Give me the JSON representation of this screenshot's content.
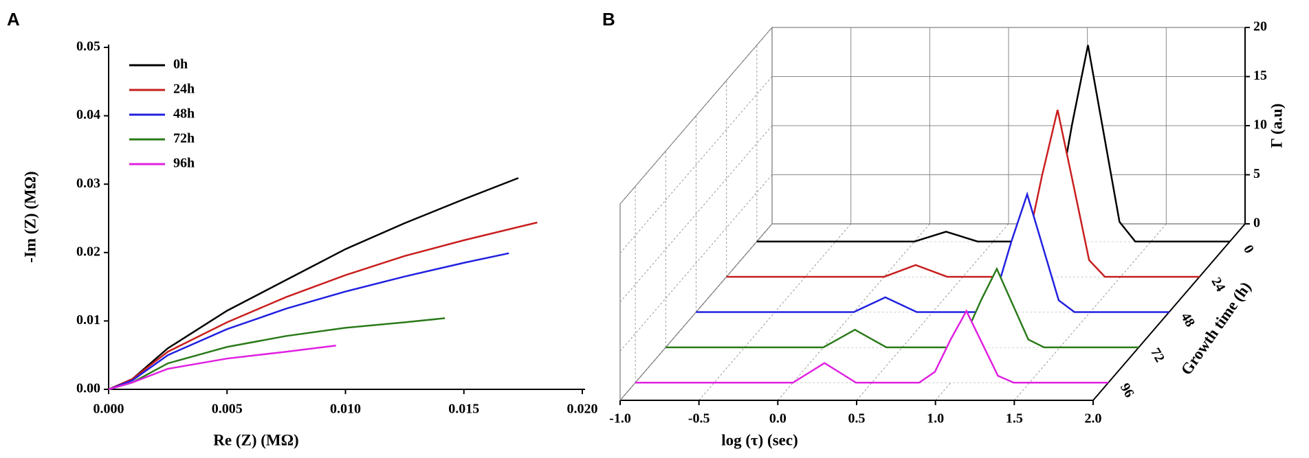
{
  "chart_data": [
    {
      "type": "line",
      "panel_label": "A",
      "xlabel": "Re (Z) (MΩ)",
      "ylabel": "-Im (Z) (MΩ)",
      "xlim": [
        0,
        0.02
      ],
      "ylim": [
        0,
        0.05
      ],
      "xticks": [
        {
          "value": 0,
          "label": "0.000"
        },
        {
          "value": 0.005,
          "label": "0.005"
        },
        {
          "value": 0.01,
          "label": "0.010"
        },
        {
          "value": 0.015,
          "label": "0.015"
        },
        {
          "value": 0.02,
          "label": "0.020"
        }
      ],
      "yticks": [
        {
          "value": 0,
          "label": "0.00"
        },
        {
          "value": 0.01,
          "label": "0.01"
        },
        {
          "value": 0.02,
          "label": "0.02"
        },
        {
          "value": 0.03,
          "label": "0.03"
        },
        {
          "value": 0.04,
          "label": "0.04"
        },
        {
          "value": 0.05,
          "label": "0.05"
        }
      ],
      "legend": "upper left",
      "series": [
        {
          "name": "0h",
          "color": "#000000",
          "x": [
            0,
            0.001,
            0.0025,
            0.005,
            0.0075,
            0.01,
            0.0125,
            0.015,
            0.0173
          ],
          "values": [
            0,
            0.0015,
            0.006,
            0.0115,
            0.016,
            0.0205,
            0.0243,
            0.0278,
            0.0309
          ]
        },
        {
          "name": "24h",
          "color": "#c81e1e",
          "x": [
            0,
            0.001,
            0.0025,
            0.005,
            0.0075,
            0.01,
            0.0125,
            0.015,
            0.0181
          ],
          "values": [
            0,
            0.0015,
            0.0055,
            0.0098,
            0.0135,
            0.0167,
            0.0195,
            0.0218,
            0.0244
          ]
        },
        {
          "name": "48h",
          "color": "#2020e0",
          "x": [
            0,
            0.001,
            0.0025,
            0.005,
            0.0075,
            0.01,
            0.0125,
            0.015,
            0.0169
          ],
          "values": [
            0,
            0.0013,
            0.005,
            0.0088,
            0.0118,
            0.0143,
            0.0165,
            0.0185,
            0.0199
          ]
        },
        {
          "name": "72h",
          "color": "#2a7a1a",
          "x": [
            0,
            0.001,
            0.0025,
            0.005,
            0.0075,
            0.01,
            0.0125,
            0.0142
          ],
          "values": [
            0,
            0.001,
            0.0038,
            0.0062,
            0.0078,
            0.009,
            0.0098,
            0.0104
          ]
        },
        {
          "name": "96h",
          "color": "#e020e0",
          "x": [
            0,
            0.001,
            0.0025,
            0.005,
            0.0075,
            0.0096
          ],
          "values": [
            0,
            0.001,
            0.003,
            0.0045,
            0.0055,
            0.0064
          ]
        }
      ]
    },
    {
      "type": "waterfall3d",
      "panel_label": "B",
      "xlabel": "log (τ) (sec)",
      "ylabel": "Growth time (h)",
      "zlabel": "Γ (a.u)",
      "xlim": [
        -1,
        2
      ],
      "zlim": [
        0,
        20
      ],
      "xticks": [
        {
          "value": -1,
          "label": "-1.0"
        },
        -0.5,
        {
          "value": 0,
          "label": "0.0"
        },
        0.5,
        {
          "value": 1,
          "label": "1.0"
        },
        1.5,
        {
          "value": 2,
          "label": "2.0"
        }
      ],
      "zticks": [
        0,
        5,
        10,
        15,
        20
      ],
      "categories": [
        "0",
        "24",
        "48",
        "72",
        "96"
      ],
      "x": [
        -1.0,
        -0.9,
        -0.8,
        -0.7,
        -0.6,
        -0.5,
        -0.4,
        -0.3,
        -0.2,
        -0.1,
        0.0,
        0.1,
        0.2,
        0.3,
        0.4,
        0.5,
        0.6,
        0.7,
        0.8,
        0.9,
        1.0,
        1.1,
        1.2,
        1.3,
        1.4,
        1.5,
        1.6,
        1.7,
        1.8,
        1.9,
        2.0
      ],
      "grid": true,
      "series": [
        {
          "color": "#000000",
          "values": [
            0,
            0,
            0,
            0,
            0,
            0,
            0,
            0,
            0,
            0,
            0,
            0.5,
            1,
            0.5,
            0,
            0,
            0,
            0,
            0,
            3,
            12,
            20,
            11,
            2,
            0,
            0,
            0,
            0,
            0,
            0,
            0
          ]
        },
        {
          "color": "#c81e1e",
          "values": [
            0,
            0,
            0,
            0,
            0,
            0,
            0,
            0,
            0,
            0,
            0,
            0.6,
            1.2,
            0.6,
            0,
            0,
            0,
            0,
            0,
            2.6,
            10.2,
            17,
            9.4,
            1.7,
            0,
            0,
            0,
            0,
            0,
            0,
            0
          ]
        },
        {
          "color": "#2020e0",
          "values": [
            0,
            0,
            0,
            0,
            0,
            0,
            0,
            0,
            0,
            0,
            0,
            0.75,
            1.5,
            0.75,
            0,
            0,
            0,
            0,
            0,
            1.8,
            7.2,
            12,
            6.6,
            1.2,
            0,
            0,
            0,
            0,
            0,
            0,
            0
          ]
        },
        {
          "color": "#2a7a1a",
          "values": [
            0,
            0,
            0,
            0,
            0,
            0,
            0,
            0,
            0,
            0,
            0,
            0.9,
            1.8,
            0.9,
            0,
            0,
            0,
            0,
            0,
            1.2,
            4.8,
            8,
            4.4,
            0.8,
            0,
            0,
            0,
            0,
            0,
            0,
            0
          ]
        },
        {
          "color": "#e020e0",
          "values": [
            0,
            0,
            0,
            0,
            0,
            0,
            0,
            0,
            0,
            0,
            0,
            1,
            2,
            1,
            0,
            0,
            0,
            0,
            0,
            1.1,
            4.4,
            7.3,
            4,
            0.7,
            0,
            0,
            0,
            0,
            0,
            0,
            0
          ]
        }
      ]
    }
  ]
}
